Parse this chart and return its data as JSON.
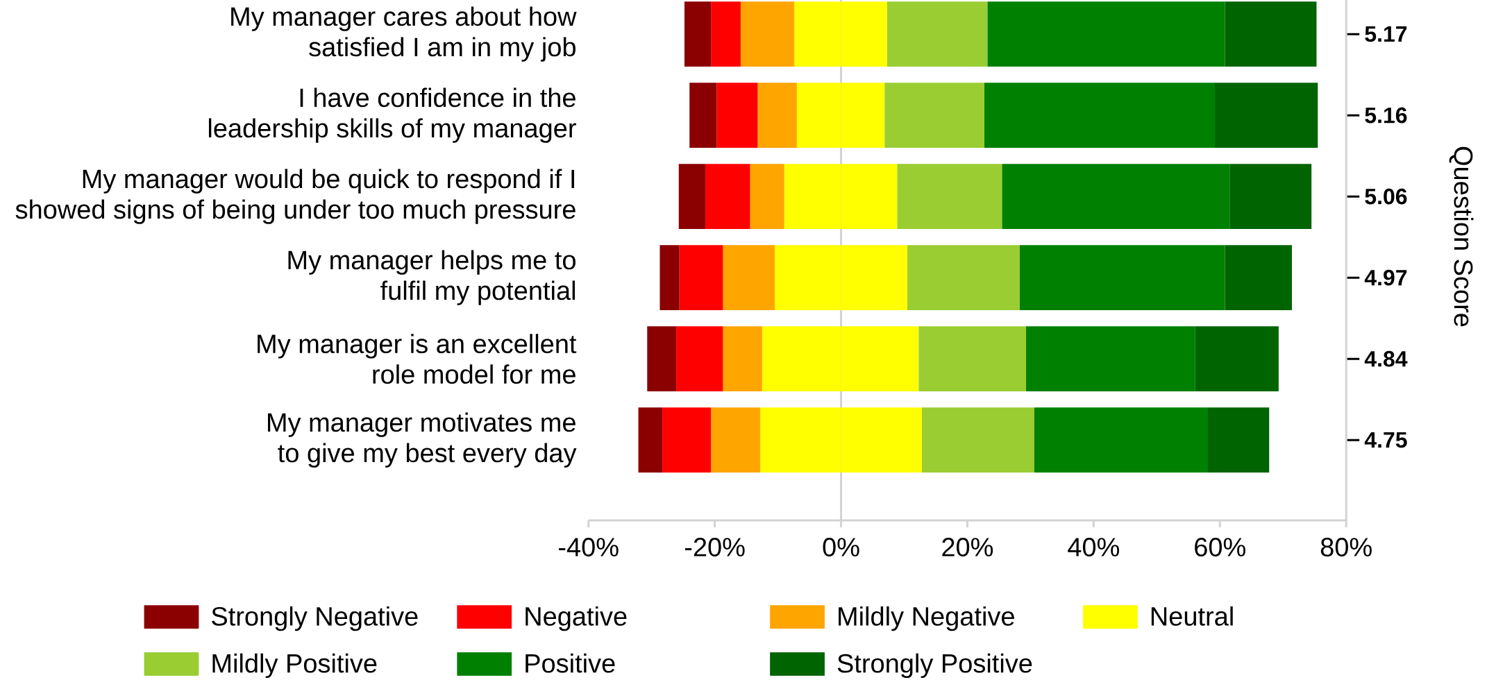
{
  "chart_data": {
    "type": "bar",
    "orientation": "horizontal",
    "stacked": true,
    "categories": [
      "My manager cares about how satisfied I am in my job",
      "I have confidence in the leadership skills of my manager",
      "My manager would be quick to respond if I showed signs of being under too much pressure",
      "My manager helps me to fulfil my potential",
      "My manager is an excellent role model for me",
      "My manager motivates me to give my best every day"
    ],
    "y2_categories": [
      "5.17",
      "5.16",
      "5.06",
      "4.97",
      "4.84",
      "4.75"
    ],
    "y2label": "Question Score",
    "series": [
      {
        "name": "Neutral",
        "color": "#ffff00",
        "values": [
          -7.4,
          -7.0,
          -9.0,
          -10.5,
          -12.5,
          -12.8
        ]
      },
      {
        "color": "#ffff00",
        "values": [
          7.3,
          6.9,
          8.9,
          10.5,
          12.3,
          12.8
        ]
      },
      {
        "name": "Mildly Negative",
        "color": "#ffa500",
        "values": [
          -8.5,
          -6.2,
          -5.4,
          -8.2,
          -6.2,
          -7.8
        ]
      },
      {
        "name": "Mildly Positive",
        "color": "#9acd32",
        "values": [
          15.9,
          15.8,
          16.6,
          17.8,
          17.0,
          17.8
        ]
      },
      {
        "name": "Negative",
        "color": "#ff0000",
        "values": [
          -4.7,
          -6.5,
          -7.1,
          -6.9,
          -7.4,
          -7.7
        ]
      },
      {
        "name": "Positive",
        "color": "#008000",
        "values": [
          37.6,
          36.5,
          36.1,
          32.5,
          26.8,
          27.4
        ]
      },
      {
        "name": "Strongly Negative",
        "color": "#8b0000",
        "values": [
          -4.2,
          -4.3,
          -4.2,
          -3.1,
          -4.6,
          -3.8
        ]
      },
      {
        "name": "Strongly Positive",
        "color": "#006400",
        "values": [
          14.5,
          16.3,
          12.9,
          10.6,
          13.2,
          9.8
        ]
      }
    ],
    "xlim": [
      -40,
      80
    ],
    "xticks": [
      {
        "value": -40,
        "label": "-40%"
      },
      {
        "value": -20,
        "label": "-20%"
      },
      {
        "value": 0,
        "label": "0%"
      },
      {
        "value": 20,
        "label": "20%"
      },
      {
        "value": 40,
        "label": "40%"
      },
      {
        "value": 60,
        "label": "60%"
      },
      {
        "value": 80,
        "label": "80%"
      }
    ],
    "ref_lines": [
      {
        "axis": "x",
        "value": 0,
        "color": "#d3d3d3"
      }
    ],
    "legend": "bottom"
  }
}
